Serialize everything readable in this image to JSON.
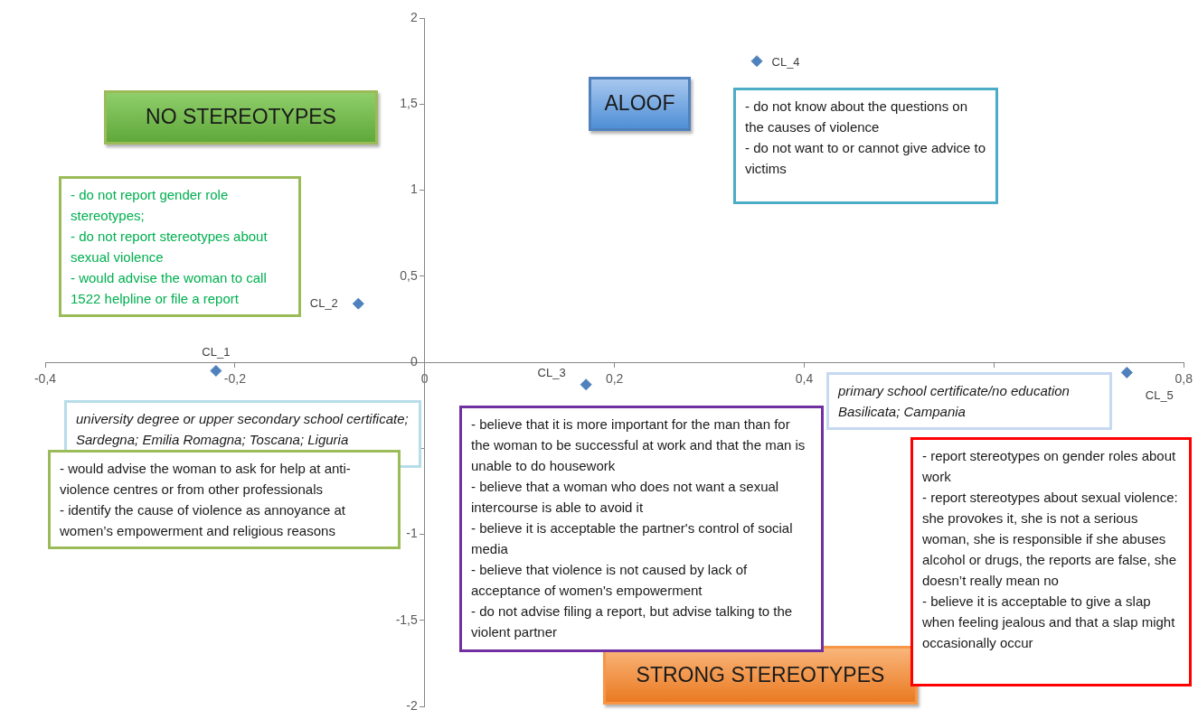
{
  "chart_data": {
    "type": "scatter",
    "marker": "diamond",
    "legend": false,
    "grid": false,
    "xlim": [
      -0.4,
      0.8
    ],
    "ylim": [
      -2,
      2
    ],
    "xticks": [
      {
        "value": -0.4,
        "label": "-0,4"
      },
      {
        "value": -0.2,
        "label": "-0,2"
      },
      0,
      {
        "value": 0.2,
        "label": "0,2"
      },
      {
        "value": 0.4,
        "label": "0,4"
      },
      {
        "value": 0.6,
        "label": null
      },
      {
        "value": 0.8,
        "label": "0,8"
      }
    ],
    "yticks": [
      -2,
      {
        "value": -1.5,
        "label": "-1,5"
      },
      -1,
      {
        "value": -0.5,
        "label": null
      },
      0,
      {
        "value": 0.5,
        "label": "0,5"
      },
      1,
      {
        "value": 1.5,
        "label": "1,5"
      },
      2
    ],
    "series": [
      {
        "name": "CL_1",
        "color": "#4f81bd",
        "x": [
          -0.22
        ],
        "values": [
          -0.05
        ]
      },
      {
        "name": "CL_2",
        "color": "#4f81bd",
        "x": [
          -0.07
        ],
        "values": [
          0.34
        ]
      },
      {
        "name": "CL_3",
        "color": "#4f81bd",
        "x": [
          0.17
        ],
        "values": [
          -0.13
        ]
      },
      {
        "name": "CL_4",
        "color": "#4f81bd",
        "x": [
          0.35
        ],
        "values": [
          1.75
        ]
      },
      {
        "name": "CL_5",
        "color": "#4f81bd",
        "x": [
          0.74
        ],
        "values": [
          -0.06
        ]
      }
    ],
    "annotations": [
      "NO STEREOTYPES",
      "ALOOF",
      "STRONG STEREOTYPES",
      "- do not report gender role stereotypes;\n- do not report stereotypes about sexual violence\n- would advise the woman to call 1522 helpline or file a report",
      "- do not know about the questions on the causes of violence\n- do not want to or cannot give advice to victims",
      "university degree or upper secondary school certificate;\nSardegna; Emilia Romagna; Toscana; Liguria",
      "- would advise the woman to ask for help at anti-violence centres or from other professionals\n- identify the cause of violence as annoyance at women’s empowerment and religious reasons",
      "- believe that it is more important for the man than for the woman to be successful at work and that the man is unable to do housework\n- believe that a woman who does not want a sexual intercourse is able to avoid it\n- believe it is acceptable the partner's control of social media\n- believe that violence is not caused by lack of acceptance of women's empowerment\n- do not advise filing a report, but advise talking to the violent partner",
      "primary school certificate/no education\nBasilicata; Campania",
      "- report stereotypes on gender roles about work\n- report stereotypes about sexual violence: she provokes it, she is not a serious woman, she is responsible if she abuses alcohol or drugs, the reports are false, she doesn’t really mean no\n- believe it is acceptable to give a slap when feeling jealous and that a slap might occasionally occur"
    ]
  }
}
